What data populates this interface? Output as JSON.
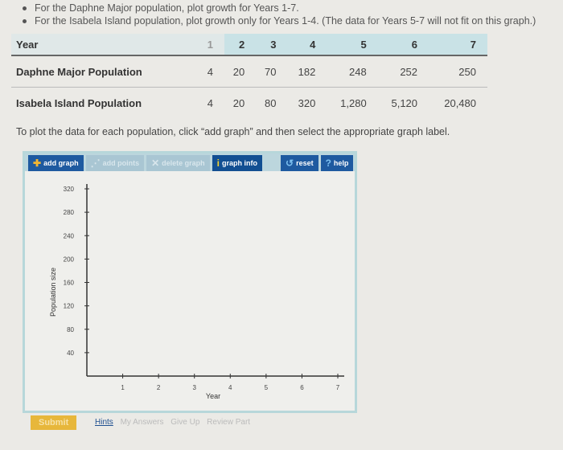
{
  "instructions": [
    "For the Daphne Major population, plot growth for Years 1-7.",
    "For the Isabela Island population, plot growth only for Years 1-4. (The data for Years 5-7 will not fit on this graph.)"
  ],
  "table": {
    "header": [
      "Year",
      "1",
      "2",
      "3",
      "4",
      "5",
      "6",
      "7"
    ],
    "rows": [
      [
        "Daphne Major Population",
        "4",
        "20",
        "70",
        "182",
        "248",
        "252",
        "250"
      ],
      [
        "Isabela Island Population",
        "4",
        "20",
        "80",
        "320",
        "1,280",
        "5,120",
        "20,480"
      ]
    ]
  },
  "prompt": "To plot the data for each population, click “add graph” and then select the appropriate graph label.",
  "toolbar": {
    "add_graph": "add graph",
    "add_points": "add points",
    "delete_graph": "delete graph",
    "graph_info": "graph info",
    "reset": "reset",
    "help": "help"
  },
  "chart_data": {
    "type": "line",
    "xlabel": "Year",
    "ylabel": "Population size",
    "x_ticks": [
      "1",
      "2",
      "3",
      "4",
      "5",
      "6",
      "7"
    ],
    "y_ticks": [
      "40",
      "80",
      "120",
      "160",
      "200",
      "240",
      "280",
      "320"
    ],
    "xlim": [
      0,
      7
    ],
    "ylim": [
      0,
      320
    ],
    "series": []
  },
  "footer": {
    "submit": "Submit",
    "hints": "Hints",
    "my_answers": "My Answers",
    "give_up": "Give Up",
    "review_part": "Review Part"
  }
}
